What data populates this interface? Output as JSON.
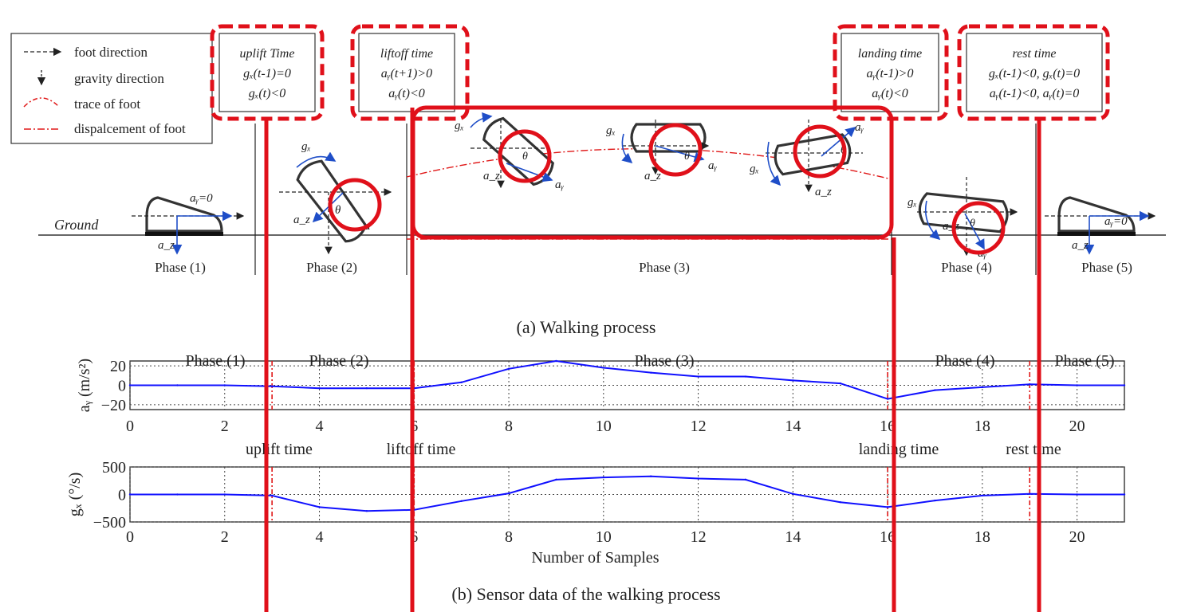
{
  "legend": {
    "items": [
      {
        "icon": "dashed-arrow-icon",
        "label": "foot direction"
      },
      {
        "icon": "down-arrow-icon",
        "label": "gravity direction"
      },
      {
        "icon": "dotted-arc-icon",
        "label": "trace of foot"
      },
      {
        "icon": "dash-dot-line-icon",
        "label": "dispalcement of foot"
      }
    ]
  },
  "events": [
    {
      "title": "uplift Time",
      "cond1": "gₓ(t-1)=0",
      "cond2": "gₓ(t)<0"
    },
    {
      "title": "liftoff time",
      "cond1": "aᵧ(t+1)>0",
      "cond2": "aᵧ(t)<0"
    },
    {
      "title": "landing time",
      "cond1": "aᵧ(t-1)>0",
      "cond2": "aᵧ(t)<0"
    },
    {
      "title": "rest time",
      "cond1": "gₓ(t-1)<0, gₓ(t)=0",
      "cond2": "aᵧ(t-1)<0, aᵧ(t)=0"
    }
  ],
  "diagram": {
    "ground_label": "Ground",
    "phases": [
      "Phase (1)",
      "Phase (2)",
      "Phase (3)",
      "Phase (4)",
      "Phase (5)"
    ],
    "caption": "(a) Walking process",
    "symbols": {
      "gx": "gₓ",
      "ay": "aᵧ",
      "az": "a_z",
      "ay0": "aᵧ=0",
      "theta": "θ",
      "a": "a"
    }
  },
  "plots_caption": "(b) Sensor data of the walking process",
  "chart_data": [
    {
      "type": "line",
      "ylabel": "aᵧ (m/s²)",
      "xlim": [
        0,
        21
      ],
      "ylim": [
        -25,
        25
      ],
      "yticks": [
        20,
        0,
        -20
      ],
      "xticks": [
        0,
        2,
        4,
        6,
        8,
        10,
        12,
        14,
        16,
        18,
        20
      ],
      "phase_labels": [
        "Phase (1)",
        "Phase (2)",
        "Phase (3)",
        "Phase (4)",
        "Phase (5)"
      ],
      "event_lines": [
        3,
        6,
        16,
        19
      ],
      "event_labels": [
        "uplift time",
        "liftoff time",
        "landing time",
        "rest time"
      ],
      "x": [
        0,
        1,
        2,
        3,
        4,
        5,
        6,
        7,
        8,
        9,
        10,
        11,
        12,
        13,
        14,
        15,
        16,
        17,
        18,
        19,
        20,
        21
      ],
      "y": [
        0,
        0,
        0,
        -1,
        -3,
        -3,
        -3,
        3,
        17,
        25,
        18,
        13,
        9,
        9,
        5,
        2,
        -14,
        -5,
        -2,
        1,
        0,
        0
      ]
    },
    {
      "type": "line",
      "ylabel": "gₓ (°/s)",
      "xlabel": "Number of Samples",
      "xlim": [
        0,
        21
      ],
      "ylim": [
        -500,
        500
      ],
      "yticks": [
        500,
        0,
        -500
      ],
      "xticks": [
        0,
        2,
        4,
        6,
        8,
        10,
        12,
        14,
        16,
        18,
        20
      ],
      "event_lines": [
        3,
        6,
        16,
        19
      ],
      "x": [
        0,
        1,
        2,
        3,
        4,
        5,
        6,
        7,
        8,
        9,
        10,
        11,
        12,
        13,
        14,
        15,
        16,
        17,
        18,
        19,
        20,
        21
      ],
      "y": [
        0,
        0,
        0,
        -20,
        -230,
        -300,
        -280,
        -120,
        20,
        270,
        310,
        330,
        290,
        270,
        10,
        -140,
        -230,
        -110,
        -20,
        10,
        0,
        0
      ]
    }
  ]
}
